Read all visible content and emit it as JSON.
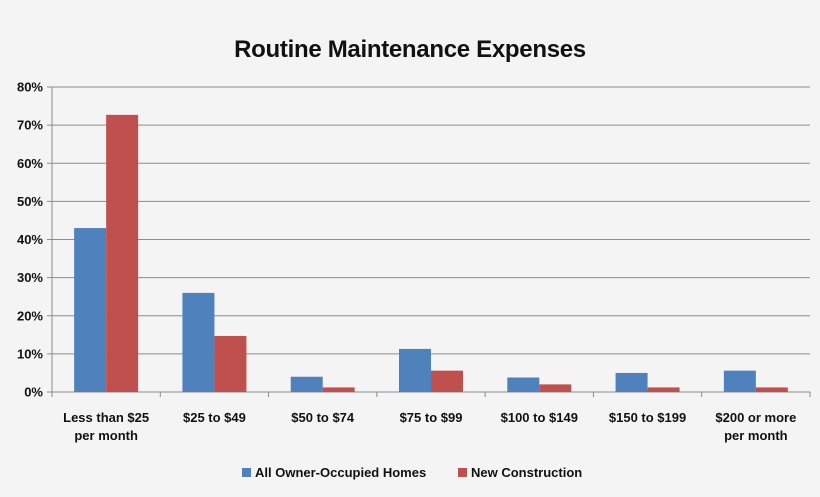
{
  "chart_data": {
    "type": "bar",
    "title": "Routine Maintenance Expenses",
    "xlabel": "",
    "ylabel": "",
    "categories": [
      "Less than $25\nper month",
      "$25 to $49",
      "$50 to $74",
      "$75 to $99",
      "$100 to $149",
      "$150 to $199",
      "$200 or more\nper month"
    ],
    "series": [
      {
        "name": "All Owner-Occupied Homes",
        "color": "#4f81bd",
        "values": [
          43,
          26,
          4,
          11.3,
          3.8,
          5,
          5.6
        ]
      },
      {
        "name": "New Construction",
        "color": "#c0504d",
        "values": [
          72.7,
          14.7,
          1.2,
          5.6,
          2,
          1.2,
          1.2
        ]
      }
    ],
    "ylim": [
      0,
      80
    ],
    "yticks": [
      0,
      10,
      20,
      30,
      40,
      50,
      60,
      70,
      80
    ],
    "ytick_format": "percent",
    "grid": "horizontal",
    "legend_position": "bottom"
  },
  "colors": {
    "background": "#f4f4f4",
    "gridline": "#8c8c8c",
    "axis": "#8c8c8c",
    "text": "#111111"
  }
}
